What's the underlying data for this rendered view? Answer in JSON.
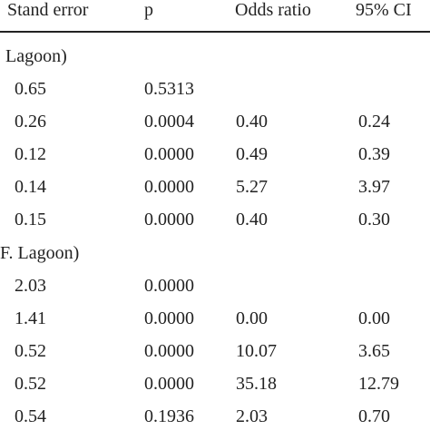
{
  "table": {
    "headers": [
      "Stand error",
      "p",
      "Odds ratio",
      "95% CI"
    ],
    "sections": [
      {
        "label": "Lagoon)",
        "rows": [
          [
            "0.65",
            "0.5313",
            "",
            ""
          ],
          [
            "0.26",
            "0.0004",
            "0.40",
            "0.24"
          ],
          [
            "0.12",
            "0.0000",
            "0.49",
            "0.39"
          ],
          [
            "0.14",
            "0.0000",
            "5.27",
            "3.97"
          ],
          [
            "0.15",
            "0.0000",
            "0.40",
            "0.30"
          ]
        ]
      },
      {
        "label": "F. Lagoon)",
        "rows": [
          [
            "2.03",
            "0.0000",
            "",
            ""
          ],
          [
            "1.41",
            "0.0000",
            "0.00",
            "0.00"
          ],
          [
            "0.52",
            "0.0000",
            "10.07",
            "3.65"
          ],
          [
            "0.52",
            "0.0000",
            "35.18",
            "12.79"
          ],
          [
            "0.54",
            "0.1936",
            "2.03",
            "0.70"
          ]
        ]
      }
    ]
  }
}
